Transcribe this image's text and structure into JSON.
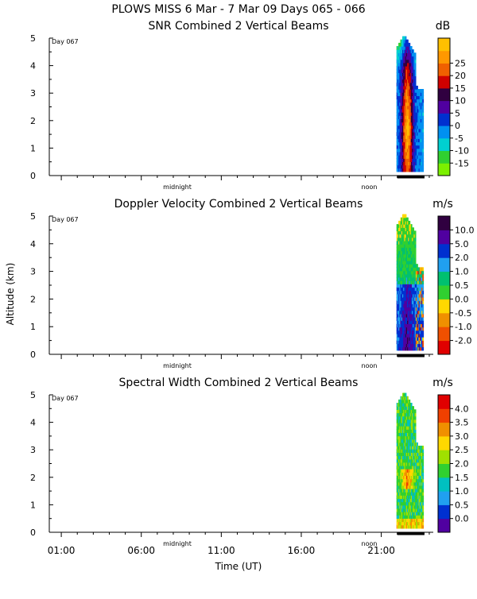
{
  "title": "PLOWS MISS   6 Mar -  7 Mar 09 Days 065 - 066",
  "y_axis_label": "Altitude (km)",
  "x_axis_label": "Time (UT)",
  "x_ticks": [
    "01:00",
    "06:00",
    "11:00",
    "16:00",
    "21:00"
  ],
  "day_markers": [
    "midnight",
    "noon"
  ],
  "chart_data": [
    {
      "type": "heatmap",
      "title": "SNR Combined 2 Vertical Beams",
      "unit": "dB",
      "day_label": "Day 067",
      "xlabel": "",
      "ylabel": "Altitude (km)",
      "ylim": [
        0,
        5
      ],
      "y_ticks": [
        "0",
        "1",
        "2",
        "3",
        "4",
        "5"
      ],
      "colorbar_labels": [
        "-15",
        "-10",
        "-5",
        "0",
        "5",
        "10",
        "15",
        "20",
        "25"
      ],
      "colorbar_colors": [
        "#7cf000",
        "#30d030",
        "#00d0d0",
        "#0090f0",
        "#0030d0",
        "#5000a0",
        "#300040",
        "#d00000",
        "#f06000",
        "#ff9800",
        "#ffc000"
      ]
    },
    {
      "type": "heatmap",
      "title": "Doppler Velocity Combined 2 Vertical Beams",
      "unit": "m/s",
      "day_label": "Day 067",
      "xlabel": "",
      "ylabel": "Altitude (km)",
      "ylim": [
        0,
        5
      ],
      "y_ticks": [
        "0",
        "1",
        "2",
        "3",
        "4",
        "5"
      ],
      "colorbar_labels": [
        "-2.0",
        "-1.0",
        "-0.5",
        "0.0",
        "0.5",
        "1.0",
        "2.0",
        "5.0",
        "10.0"
      ],
      "colorbar_colors": [
        "#e00000",
        "#f05000",
        "#f09000",
        "#ffd800",
        "#30d030",
        "#00c070",
        "#20a0f0",
        "#0030d0",
        "#5000a0",
        "#300040"
      ]
    },
    {
      "type": "heatmap",
      "title": "Spectral Width Combined 2 Vertical Beams",
      "unit": "m/s",
      "day_label": "Day 067",
      "xlabel": "Time (UT)",
      "ylabel": "Altitude (km)",
      "ylim": [
        0,
        5
      ],
      "y_ticks": [
        "0",
        "1",
        "2",
        "3",
        "4",
        "5"
      ],
      "colorbar_labels": [
        "0.0",
        "0.5",
        "1.0",
        "1.5",
        "2.0",
        "2.5",
        "3.0",
        "3.5",
        "4.0"
      ],
      "colorbar_colors": [
        "#5000a0",
        "#0030d0",
        "#20a0f0",
        "#00c0c0",
        "#30d030",
        "#a0e000",
        "#ffd800",
        "#f09000",
        "#f04000",
        "#e00000"
      ]
    }
  ]
}
